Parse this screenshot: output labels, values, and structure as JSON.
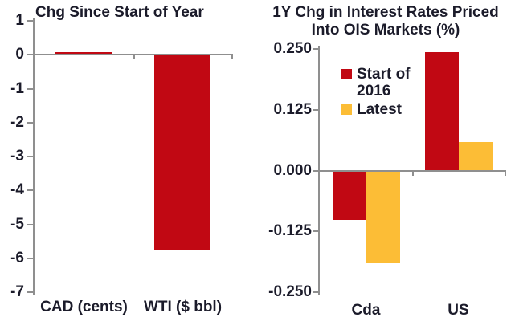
{
  "colors": {
    "bar_red": "#C10813",
    "bar_yellow": "#FCBD36",
    "axis_gray": "#8F8F8F",
    "text_dark": "#1B1B2A"
  },
  "chart_data": [
    {
      "type": "bar",
      "title": "Chg Since Start of Year",
      "categories": [
        "CAD (cents)",
        "WTI ($ bbl)"
      ],
      "values": [
        0.05,
        -5.75
      ],
      "ylim": [
        -7,
        1
      ],
      "yticks": [
        "1",
        "0",
        "-1",
        "-2",
        "-3",
        "-4",
        "-5",
        "-6",
        "-7"
      ],
      "bar_color": "#C10813",
      "grid": false,
      "legend": null
    },
    {
      "type": "bar",
      "title": "1Y Chg in Interest Rates Priced Into OIS Markets (%)",
      "title_lines": [
        "1Y Chg in Interest Rates Priced",
        "Into OIS Markets (%)"
      ],
      "categories": [
        "Cda",
        "US"
      ],
      "series": [
        {
          "name": "Start of 2016",
          "color": "#C10813",
          "values": [
            -0.1,
            0.245
          ]
        },
        {
          "name": "Latest",
          "color": "#FCBD36",
          "values": [
            -0.19,
            0.06
          ]
        }
      ],
      "ylim": [
        -0.25,
        0.25
      ],
      "yticks": [
        "0.250",
        "0.125",
        "0.000",
        "-0.125",
        "-0.250"
      ],
      "grid": false,
      "legend_position": "upper-left-inside"
    }
  ]
}
